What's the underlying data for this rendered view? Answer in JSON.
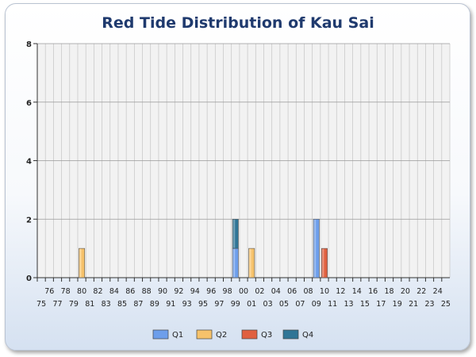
{
  "chart_data": {
    "type": "bar",
    "title": "Red Tide Distribution of Kau Sai",
    "xlabel": "",
    "ylabel": "",
    "ylim": [
      0,
      8
    ],
    "yticks": [
      0,
      2,
      4,
      6,
      8
    ],
    "stacked": true,
    "grid": true,
    "legend_position": "bottom",
    "categories": [
      "75",
      "76",
      "77",
      "78",
      "79",
      "80",
      "81",
      "82",
      "83",
      "84",
      "85",
      "86",
      "87",
      "88",
      "89",
      "90",
      "91",
      "92",
      "93",
      "94",
      "95",
      "96",
      "97",
      "98",
      "99",
      "00",
      "01",
      "02",
      "03",
      "04",
      "05",
      "06",
      "07",
      "08",
      "09",
      "10",
      "11",
      "12",
      "13",
      "14",
      "15",
      "16",
      "17",
      "18",
      "19",
      "20",
      "21",
      "22",
      "23",
      "24",
      "25"
    ],
    "series": [
      {
        "name": "Q1",
        "color": "#6d9eeb",
        "points": [
          {
            "category": "99",
            "value": 1
          },
          {
            "category": "09",
            "value": 2
          }
        ]
      },
      {
        "name": "Q2",
        "color": "#f6c26b",
        "points": [
          {
            "category": "80",
            "value": 1
          },
          {
            "category": "01",
            "value": 1
          }
        ]
      },
      {
        "name": "Q3",
        "color": "#e06040",
        "points": [
          {
            "category": "10",
            "value": 1
          }
        ]
      },
      {
        "name": "Q4",
        "color": "#2f7596",
        "points": [
          {
            "category": "99",
            "value": 1
          }
        ]
      }
    ]
  }
}
